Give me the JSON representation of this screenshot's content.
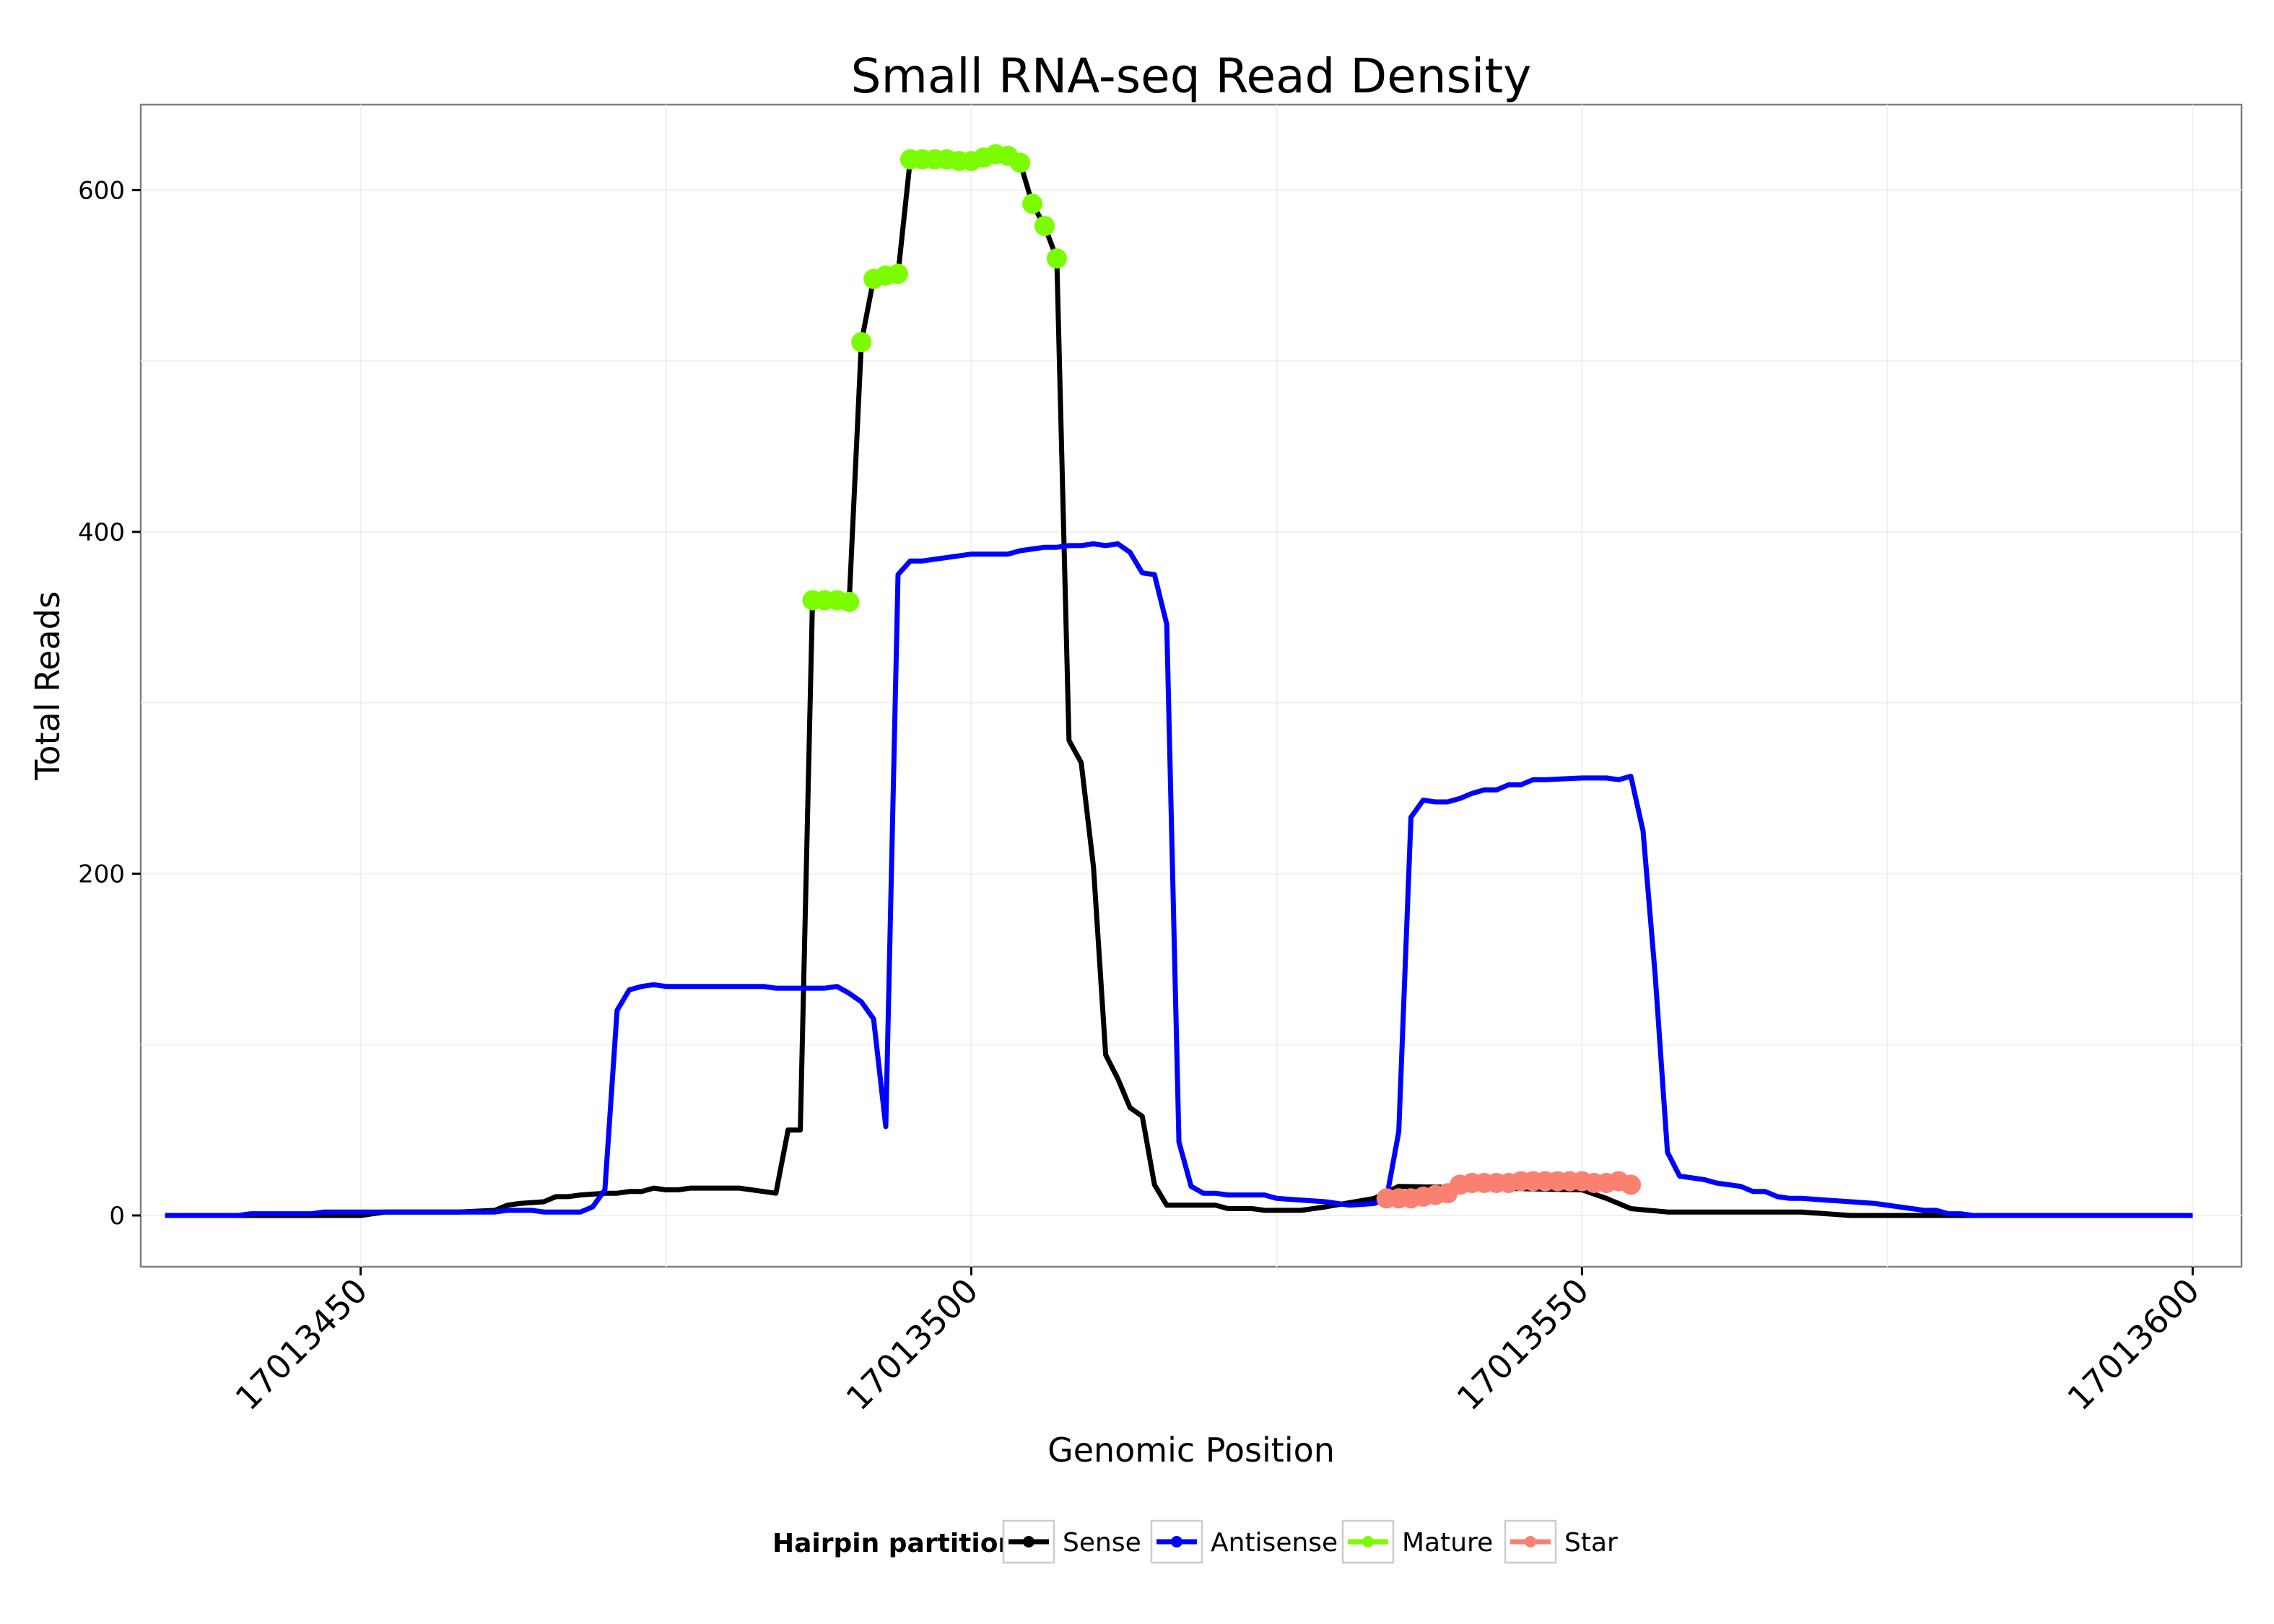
{
  "chart_data": {
    "type": "line",
    "title": "Small RNA-seq Read Density",
    "xlabel": "Genomic Position",
    "ylabel": "Total Reads",
    "xlim": [
      17013432,
      17013604
    ],
    "ylim": [
      -30,
      650
    ],
    "x_ticks": [
      17013450,
      17013500,
      17013550,
      17013600
    ],
    "x_tick_labels": [
      "17013450",
      "17013500",
      "17013550",
      "17013600"
    ],
    "y_ticks": [
      0,
      200,
      400,
      600
    ],
    "y_tick_labels": [
      "0",
      "200",
      "400",
      "600"
    ],
    "grid": true,
    "legend": {
      "title": "Hairpin partition",
      "position": "bottom",
      "entries": [
        {
          "label": "Sense",
          "color": "#000000"
        },
        {
          "label": "Antisense",
          "color": "#0000ff"
        },
        {
          "label": "Mature",
          "color": "#7cfc00"
        },
        {
          "label": "Star",
          "color": "#fa8072"
        }
      ]
    },
    "series": [
      {
        "name": "Sense",
        "color": "#000000",
        "points": [
          [
            17013434,
            0
          ],
          [
            17013450,
            0
          ],
          [
            17013452,
            2
          ],
          [
            17013456,
            2
          ],
          [
            17013458,
            2
          ],
          [
            17013461,
            3
          ],
          [
            17013462,
            6
          ],
          [
            17013463,
            7
          ],
          [
            17013465,
            8
          ],
          [
            17013466,
            11
          ],
          [
            17013467,
            11
          ],
          [
            17013468,
            12
          ],
          [
            17013470,
            13
          ],
          [
            17013471,
            13
          ],
          [
            17013472,
            14
          ],
          [
            17013473,
            14
          ],
          [
            17013474,
            16
          ],
          [
            17013475,
            15
          ],
          [
            17013476,
            15
          ],
          [
            17013477,
            16
          ],
          [
            17013481,
            16
          ],
          [
            17013483,
            14
          ],
          [
            17013484,
            13
          ],
          [
            17013485,
            50
          ],
          [
            17013486,
            50
          ],
          [
            17013487,
            360
          ],
          [
            17013488,
            360
          ],
          [
            17013489,
            360
          ],
          [
            17013490,
            359
          ],
          [
            17013491,
            511
          ],
          [
            17013492,
            548
          ],
          [
            17013493,
            550
          ],
          [
            17013494,
            551
          ],
          [
            17013495,
            618
          ],
          [
            17013498,
            618
          ],
          [
            17013502,
            621
          ],
          [
            17013503,
            620
          ],
          [
            17013504,
            616
          ],
          [
            17013505,
            592
          ],
          [
            17013506,
            579
          ],
          [
            17013507,
            560
          ],
          [
            17013508,
            278
          ],
          [
            17013509,
            265
          ],
          [
            17013510,
            204
          ],
          [
            17013511,
            94
          ],
          [
            17013512,
            80
          ],
          [
            17013513,
            63
          ],
          [
            17013514,
            58
          ],
          [
            17013515,
            18
          ],
          [
            17013516,
            6
          ],
          [
            17013518,
            6
          ],
          [
            17013520,
            6
          ],
          [
            17013521,
            4
          ],
          [
            17013523,
            4
          ],
          [
            17013524,
            3
          ],
          [
            17013527,
            3
          ],
          [
            17013529,
            5
          ],
          [
            17013533,
            10
          ],
          [
            17013535,
            17
          ],
          [
            17013550,
            15
          ],
          [
            17013552,
            10
          ],
          [
            17013554,
            4
          ],
          [
            17013557,
            2
          ],
          [
            17013566,
            2
          ],
          [
            17013568,
            2
          ],
          [
            17013570,
            1
          ],
          [
            17013572,
            0
          ],
          [
            17013600,
            0
          ]
        ]
      },
      {
        "name": "Antisense",
        "color": "#0000ff",
        "points": [
          [
            17013434,
            0
          ],
          [
            17013440,
            0
          ],
          [
            17013441,
            1
          ],
          [
            17013443,
            1
          ],
          [
            17013444,
            1
          ],
          [
            17013446,
            1
          ],
          [
            17013447,
            2
          ],
          [
            17013450,
            2
          ],
          [
            17013461,
            2
          ],
          [
            17013462,
            3
          ],
          [
            17013464,
            3
          ],
          [
            17013465,
            2
          ],
          [
            17013467,
            2
          ],
          [
            17013468,
            2
          ],
          [
            17013469,
            5
          ],
          [
            17013470,
            15
          ],
          [
            17013471,
            120
          ],
          [
            17013472,
            132
          ],
          [
            17013473,
            134
          ],
          [
            17013474,
            135
          ],
          [
            17013475,
            134
          ],
          [
            17013483,
            134
          ],
          [
            17013484,
            133
          ],
          [
            17013487,
            133
          ],
          [
            17013488,
            133
          ],
          [
            17013489,
            134
          ],
          [
            17013490,
            130
          ],
          [
            17013491,
            125
          ],
          [
            17013492,
            115
          ],
          [
            17013493,
            52
          ],
          [
            17013494,
            375
          ],
          [
            17013495,
            383
          ],
          [
            17013496,
            383
          ],
          [
            17013500,
            387
          ],
          [
            17013503,
            387
          ],
          [
            17013504,
            389
          ],
          [
            17013505,
            390
          ],
          [
            17013506,
            391
          ],
          [
            17013507,
            391
          ],
          [
            17013508,
            392
          ],
          [
            17013509,
            392
          ],
          [
            17013510,
            393
          ],
          [
            17013511,
            392
          ],
          [
            17013512,
            393
          ],
          [
            17013513,
            388
          ],
          [
            17013514,
            376
          ],
          [
            17013515,
            375
          ],
          [
            17013516,
            346
          ],
          [
            17013517,
            43
          ],
          [
            17013518,
            17
          ],
          [
            17013519,
            13
          ],
          [
            17013520,
            13
          ],
          [
            17013521,
            12
          ],
          [
            17013524,
            12
          ],
          [
            17013525,
            10
          ],
          [
            17013529,
            8
          ],
          [
            17013531,
            6
          ],
          [
            17013533,
            7
          ],
          [
            17013534,
            10
          ],
          [
            17013535,
            49
          ],
          [
            17013536,
            233
          ],
          [
            17013537,
            243
          ],
          [
            17013538,
            242
          ],
          [
            17013539,
            242
          ],
          [
            17013540,
            244
          ],
          [
            17013541,
            247
          ],
          [
            17013542,
            249
          ],
          [
            17013543,
            249
          ],
          [
            17013544,
            252
          ],
          [
            17013545,
            252
          ],
          [
            17013546,
            255
          ],
          [
            17013547,
            255
          ],
          [
            17013550,
            256
          ],
          [
            17013552,
            256
          ],
          [
            17013553,
            255
          ],
          [
            17013554,
            257
          ],
          [
            17013555,
            225
          ],
          [
            17013556,
            140
          ],
          [
            17013557,
            37
          ],
          [
            17013558,
            23
          ],
          [
            17013559,
            22
          ],
          [
            17013560,
            21
          ],
          [
            17013561,
            19
          ],
          [
            17013563,
            17
          ],
          [
            17013564,
            14
          ],
          [
            17013565,
            14
          ],
          [
            17013566,
            11
          ],
          [
            17013567,
            10
          ],
          [
            17013568,
            10
          ],
          [
            17013570,
            9
          ],
          [
            17013572,
            8
          ],
          [
            17013574,
            7
          ],
          [
            17013576,
            5
          ],
          [
            17013577,
            4
          ],
          [
            17013578,
            3
          ],
          [
            17013579,
            3
          ],
          [
            17013580,
            1
          ],
          [
            17013581,
            1
          ],
          [
            17013582,
            0
          ],
          [
            17013600,
            0
          ]
        ]
      },
      {
        "name": "Mature",
        "color": "#7cfc00",
        "points": [
          [
            17013487,
            360
          ],
          [
            17013488,
            360
          ],
          [
            17013489,
            360
          ],
          [
            17013490,
            359
          ],
          [
            17013491,
            511
          ],
          [
            17013492,
            548
          ],
          [
            17013493,
            550
          ],
          [
            17013494,
            551
          ],
          [
            17013495,
            618
          ],
          [
            17013496,
            618
          ],
          [
            17013497,
            618
          ],
          [
            17013498,
            618
          ],
          [
            17013499,
            617
          ],
          [
            17013500,
            617
          ],
          [
            17013501,
            619
          ],
          [
            17013502,
            621
          ],
          [
            17013503,
            620
          ],
          [
            17013504,
            616
          ],
          [
            17013505,
            592
          ],
          [
            17013506,
            579
          ],
          [
            17013507,
            560
          ]
        ]
      },
      {
        "name": "Star",
        "color": "#fa8072",
        "points": [
          [
            17013534,
            10
          ],
          [
            17013535,
            10
          ],
          [
            17013536,
            10
          ],
          [
            17013537,
            11
          ],
          [
            17013538,
            12
          ],
          [
            17013539,
            13
          ],
          [
            17013540,
            18
          ],
          [
            17013541,
            19
          ],
          [
            17013542,
            19
          ],
          [
            17013543,
            19
          ],
          [
            17013544,
            19
          ],
          [
            17013545,
            20
          ],
          [
            17013546,
            20
          ],
          [
            17013547,
            20
          ],
          [
            17013548,
            20
          ],
          [
            17013549,
            20
          ],
          [
            17013550,
            20
          ],
          [
            17013551,
            19
          ],
          [
            17013552,
            19
          ],
          [
            17013553,
            20
          ],
          [
            17013554,
            18
          ]
        ]
      }
    ]
  }
}
